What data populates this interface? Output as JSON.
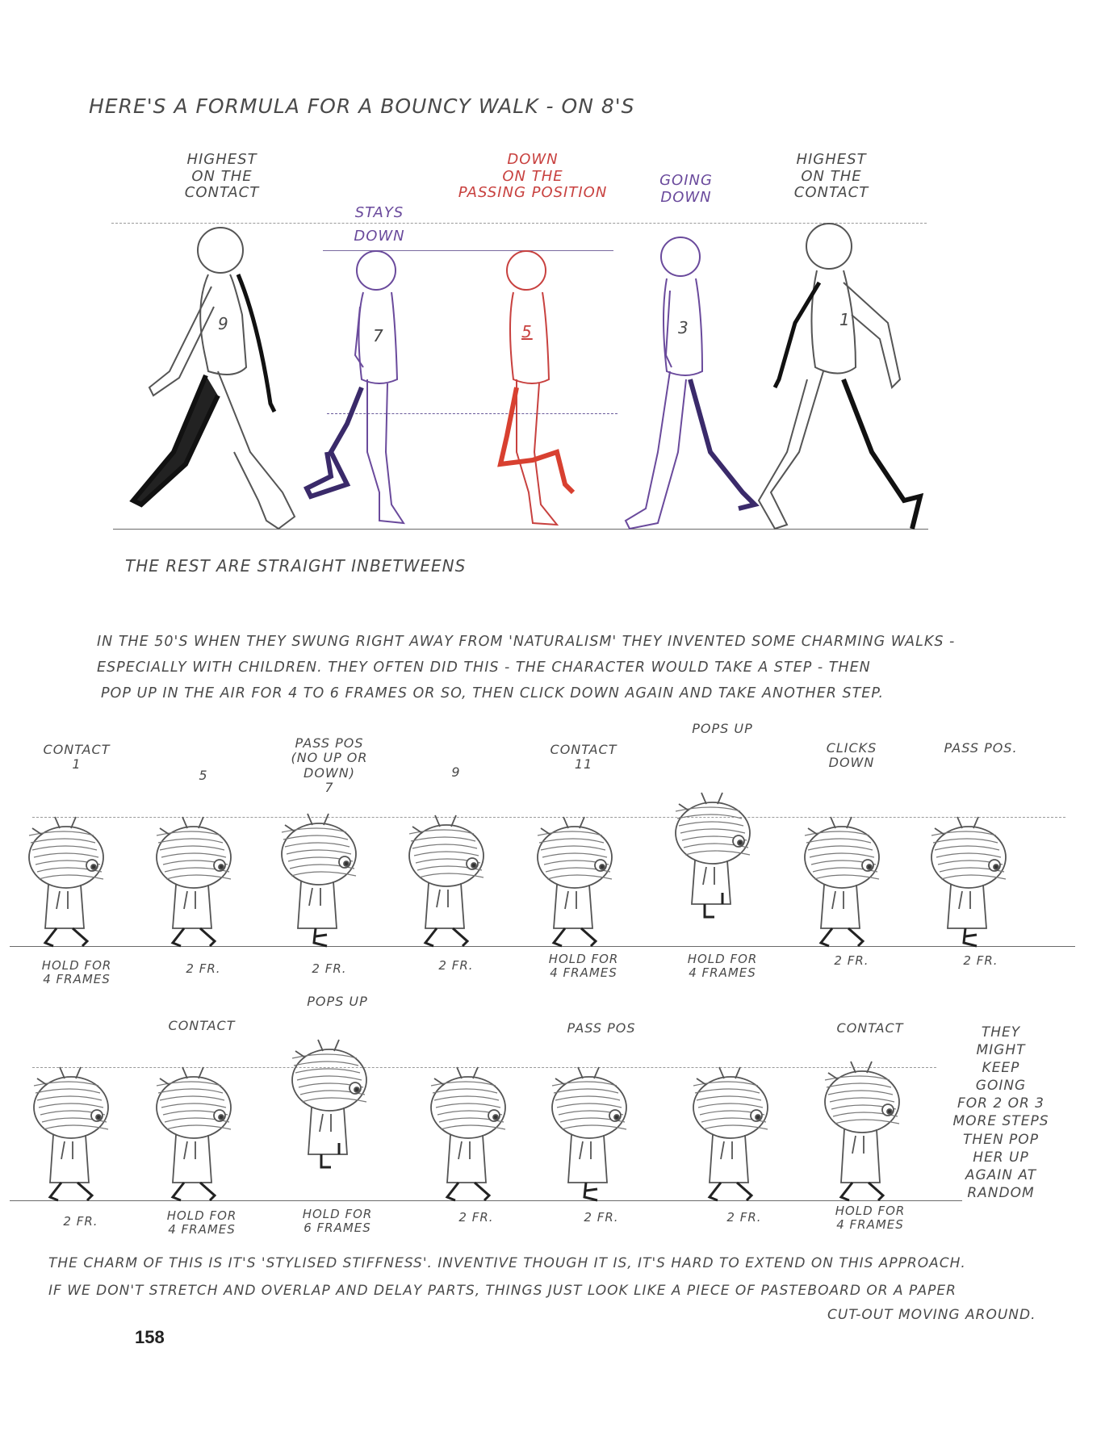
{
  "title": "HERE'S A FORMULA FOR A BOUNCY WALK - ON 8's",
  "top_walk": {
    "labels": [
      {
        "text": "HIGHEST\nON THE\nCONTACT"
      },
      {
        "text": "STAYS\nDOWN"
      },
      {
        "text": "DOWN\nON THE\nPASSING POSITION"
      },
      {
        "text": "GOING\nDOWN"
      },
      {
        "text": "HIGHEST\nON THE\nCONTACT"
      }
    ],
    "frame_numbers": [
      "9",
      "7",
      "5",
      "3",
      "1"
    ],
    "caption": "THE REST ARE STRAIGHT INBETWEENS"
  },
  "intro_text": [
    "IN the 50's WHEN THEY SWUNG RIGHT AWAY FROM 'NATURALISM' THEY INVENTED SOME CHARMING WALKS -",
    "ESPECIALLY WITH CHILDREN. THEY OFTEN DID THIS - THE CHARACTER WOULD TAKE A STEP - THEN",
    "POP UP IN The AIR FOR 4 TO 6 FRAMES OR SO, THEN CLICK DOWN AGAIN and TAKE ANOTHER STEP."
  ],
  "row1": {
    "top_labels": [
      "CONTACT\n1",
      "5",
      "PASS POS\n(NO UP OR DOWN)\n7",
      "9",
      "CONTACT\n11",
      "POPS UP",
      "CLICKS\nDOWN",
      "PASS POS."
    ],
    "bottom_labels": [
      "HOLD FOR\n4 FRAMES",
      "2 FR.",
      "2 FR.",
      "2 FR.",
      "HOLD FOR\n4 FRAMES",
      "HOLD FOR\n4 FRAMES",
      "2 FR.",
      "2 FR."
    ]
  },
  "row2": {
    "top_labels": [
      "",
      "CONTACT",
      "POPS UP",
      "",
      "PASS POS",
      "",
      "CONTACT"
    ],
    "bottom_labels": [
      "2 FR.",
      "HOLD FOR\n4 FRAMES",
      "HOLD FOR\n6 FRAMES",
      "2 FR.",
      "2 FR.",
      "2 FR.",
      "HOLD FOR\n4 FRAMES"
    ],
    "side_note": "THEY\nMIGHT\nKEEP\nGOING\nFOR 2 OR 3\nMORE STEPS\nTHEN POP\nHER UP\nAGAIN AT\nRANDOM"
  },
  "closing_text": [
    "THE CHARM OF THIS IS IT'S 'STYLISED STIFFNESS'. INVENTIVE THOUGH IT IS, IT'S HARD TO EXTEND ON THIS APPROACH.",
    "IF WE DON'T STRETCH AND OVERLAP AND DELAY PARTS, THINGS JUST LOOK LIKE A PIECE OF PASTEBOARD OR A PAPER",
    "CUT-OUT MOVING AROUND."
  ],
  "page_number": "158",
  "colors": {
    "pencil": "#4a4a4a",
    "red": "#c8413f",
    "purple": "#6a4a9c",
    "dark": "#1a1a1a"
  }
}
